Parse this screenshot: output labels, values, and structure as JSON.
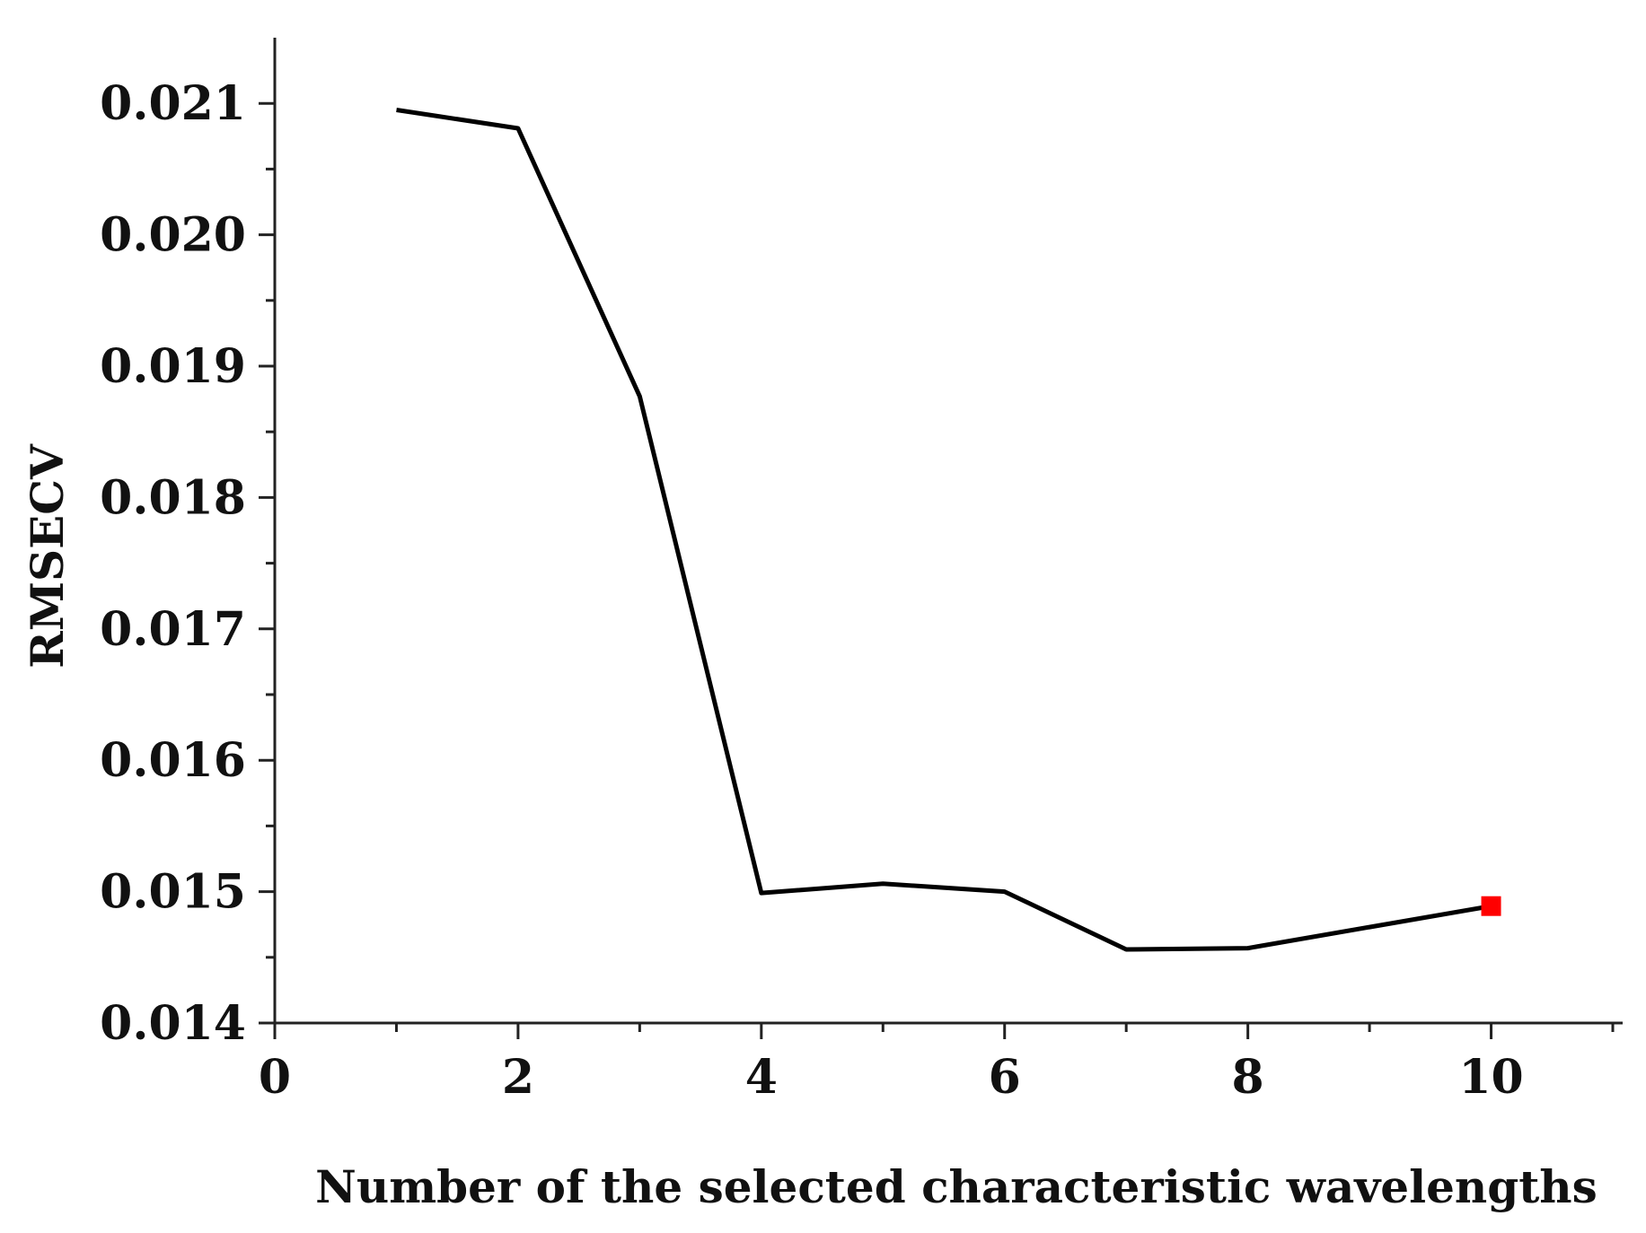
{
  "chart_data": {
    "type": "line",
    "title": "",
    "xlabel": "Number of the selected characteristic wavelengths",
    "ylabel": "RMSECV",
    "xlim": [
      0,
      11
    ],
    "ylim": [
      0.014,
      0.0215
    ],
    "x_ticks": [
      0,
      2,
      4,
      6,
      8,
      10
    ],
    "x_tick_labels": [
      "0",
      "2",
      "4",
      "6",
      "8",
      "10"
    ],
    "x_minor_ticks": [
      1,
      3,
      5,
      7,
      9,
      11
    ],
    "y_ticks": [
      0.014,
      0.015,
      0.016,
      0.017,
      0.018,
      0.019,
      0.02,
      0.021
    ],
    "y_tick_labels": [
      "0.014",
      "0.015",
      "0.016",
      "0.017",
      "0.018",
      "0.019",
      "0.020",
      "0.021"
    ],
    "y_minor_ticks": [
      0.0145,
      0.0155,
      0.0165,
      0.0175,
      0.0185,
      0.0195,
      0.0205
    ],
    "grid": false,
    "legend": "none",
    "series": [
      {
        "x": [
          1,
          2,
          3,
          4,
          5,
          6,
          7,
          8,
          9,
          10
        ],
        "values": [
          0.02095,
          0.02081,
          0.01877,
          0.01499,
          0.01506,
          0.015,
          0.01456,
          0.01457,
          0.01473,
          0.01489
        ],
        "color": "#000000"
      }
    ],
    "highlight_point": {
      "x": 10,
      "y": 0.01489,
      "color": "#ff0000",
      "marker": "square"
    }
  }
}
